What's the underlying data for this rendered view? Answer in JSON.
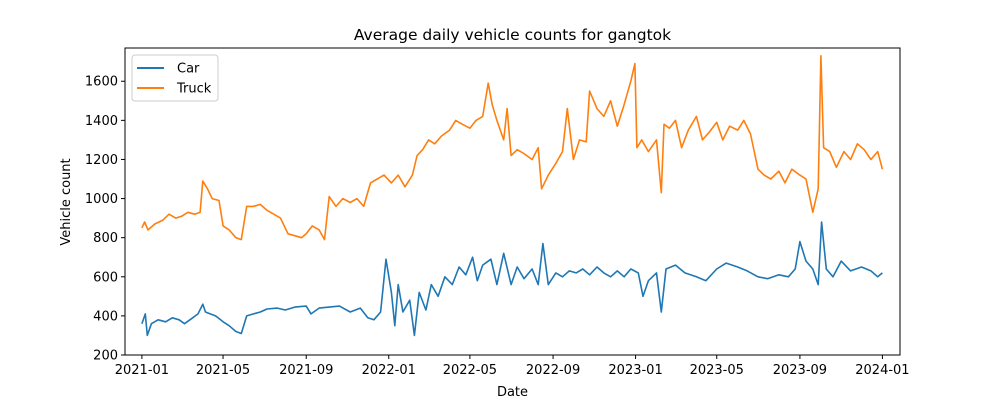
{
  "chart_data": {
    "type": "line",
    "title": "Average daily vehicle counts for gangtok",
    "xlabel": "Date",
    "ylabel": "Vehicle count",
    "xlim": [
      "2020-12-07",
      "2024-01-27"
    ],
    "ylim": [
      200,
      1770
    ],
    "x_ticks": [
      "2021-01-01",
      "2021-05-01",
      "2021-09-01",
      "2022-01-01",
      "2022-05-01",
      "2022-09-01",
      "2023-01-01",
      "2023-05-01",
      "2023-09-01",
      "2024-01-01"
    ],
    "x_tick_labels": [
      "2021-01",
      "2021-05",
      "2021-09",
      "2022-01",
      "2022-05",
      "2022-09",
      "2023-01",
      "2023-05",
      "2023-09",
      "2024-01"
    ],
    "y_ticks": [
      200,
      400,
      600,
      800,
      1000,
      1200,
      1400,
      1600
    ],
    "y_tick_labels": [
      "200",
      "400",
      "600",
      "800",
      "1000",
      "1200",
      "1400",
      "1600"
    ],
    "legend_position": "upper-left",
    "grid": false,
    "series": [
      {
        "name": "Car",
        "color": "#1f77b4",
        "points": [
          [
            "2021-01-01",
            360
          ],
          [
            "2021-01-06",
            410
          ],
          [
            "2021-01-09",
            300
          ],
          [
            "2021-01-15",
            360
          ],
          [
            "2021-01-25",
            380
          ],
          [
            "2021-02-05",
            370
          ],
          [
            "2021-02-15",
            390
          ],
          [
            "2021-02-25",
            380
          ],
          [
            "2021-03-05",
            360
          ],
          [
            "2021-03-15",
            385
          ],
          [
            "2021-03-25",
            410
          ],
          [
            "2021-04-01",
            460
          ],
          [
            "2021-04-05",
            420
          ],
          [
            "2021-04-12",
            410
          ],
          [
            "2021-04-20",
            400
          ],
          [
            "2021-05-01",
            370
          ],
          [
            "2021-05-10",
            350
          ],
          [
            "2021-05-20",
            320
          ],
          [
            "2021-05-28",
            310
          ],
          [
            "2021-06-05",
            400
          ],
          [
            "2021-06-15",
            410
          ],
          [
            "2021-06-25",
            420
          ],
          [
            "2021-07-05",
            435
          ],
          [
            "2021-07-20",
            440
          ],
          [
            "2021-08-01",
            430
          ],
          [
            "2021-08-15",
            445
          ],
          [
            "2021-09-01",
            450
          ],
          [
            "2021-09-08",
            410
          ],
          [
            "2021-09-20",
            440
          ],
          [
            "2021-10-05",
            445
          ],
          [
            "2021-10-20",
            450
          ],
          [
            "2021-11-05",
            420
          ],
          [
            "2021-11-20",
            440
          ],
          [
            "2021-12-01",
            390
          ],
          [
            "2021-12-10",
            380
          ],
          [
            "2021-12-20",
            420
          ],
          [
            "2021-12-28",
            690
          ],
          [
            "2022-01-05",
            520
          ],
          [
            "2022-01-10",
            350
          ],
          [
            "2022-01-15",
            560
          ],
          [
            "2022-01-22",
            420
          ],
          [
            "2022-02-01",
            480
          ],
          [
            "2022-02-08",
            300
          ],
          [
            "2022-02-15",
            520
          ],
          [
            "2022-02-25",
            430
          ],
          [
            "2022-03-05",
            560
          ],
          [
            "2022-03-15",
            500
          ],
          [
            "2022-03-25",
            600
          ],
          [
            "2022-04-05",
            560
          ],
          [
            "2022-04-15",
            650
          ],
          [
            "2022-04-25",
            610
          ],
          [
            "2022-05-05",
            700
          ],
          [
            "2022-05-12",
            580
          ],
          [
            "2022-05-20",
            660
          ],
          [
            "2022-06-01",
            690
          ],
          [
            "2022-06-10",
            560
          ],
          [
            "2022-06-20",
            720
          ],
          [
            "2022-07-01",
            560
          ],
          [
            "2022-07-10",
            650
          ],
          [
            "2022-07-20",
            590
          ],
          [
            "2022-08-01",
            640
          ],
          [
            "2022-08-10",
            560
          ],
          [
            "2022-08-17",
            770
          ],
          [
            "2022-08-25",
            560
          ],
          [
            "2022-09-05",
            620
          ],
          [
            "2022-09-15",
            600
          ],
          [
            "2022-09-25",
            630
          ],
          [
            "2022-10-05",
            620
          ],
          [
            "2022-10-15",
            640
          ],
          [
            "2022-10-25",
            610
          ],
          [
            "2022-11-05",
            650
          ],
          [
            "2022-11-15",
            620
          ],
          [
            "2022-11-25",
            600
          ],
          [
            "2022-12-05",
            630
          ],
          [
            "2022-12-15",
            600
          ],
          [
            "2022-12-25",
            640
          ],
          [
            "2023-01-05",
            620
          ],
          [
            "2023-01-12",
            500
          ],
          [
            "2023-01-20",
            580
          ],
          [
            "2023-02-01",
            620
          ],
          [
            "2023-02-08",
            420
          ],
          [
            "2023-02-15",
            640
          ],
          [
            "2023-03-01",
            660
          ],
          [
            "2023-03-15",
            620
          ],
          [
            "2023-04-01",
            600
          ],
          [
            "2023-04-15",
            580
          ],
          [
            "2023-05-01",
            640
          ],
          [
            "2023-05-15",
            670
          ],
          [
            "2023-06-01",
            650
          ],
          [
            "2023-06-15",
            630
          ],
          [
            "2023-07-01",
            600
          ],
          [
            "2023-07-15",
            590
          ],
          [
            "2023-08-01",
            610
          ],
          [
            "2023-08-15",
            600
          ],
          [
            "2023-08-25",
            640
          ],
          [
            "2023-09-01",
            780
          ],
          [
            "2023-09-10",
            680
          ],
          [
            "2023-09-20",
            640
          ],
          [
            "2023-09-28",
            560
          ],
          [
            "2023-10-03",
            880
          ],
          [
            "2023-10-10",
            640
          ],
          [
            "2023-10-20",
            600
          ],
          [
            "2023-11-01",
            680
          ],
          [
            "2023-11-15",
            630
          ],
          [
            "2023-12-01",
            650
          ],
          [
            "2023-12-15",
            630
          ],
          [
            "2023-12-25",
            600
          ],
          [
            "2024-01-01",
            620
          ]
        ]
      },
      {
        "name": "Truck",
        "color": "#ff7f0e",
        "points": [
          [
            "2021-01-01",
            850
          ],
          [
            "2021-01-05",
            880
          ],
          [
            "2021-01-10",
            840
          ],
          [
            "2021-01-20",
            870
          ],
          [
            "2021-02-01",
            890
          ],
          [
            "2021-02-10",
            920
          ],
          [
            "2021-02-20",
            900
          ],
          [
            "2021-03-01",
            910
          ],
          [
            "2021-03-10",
            930
          ],
          [
            "2021-03-20",
            920
          ],
          [
            "2021-03-28",
            930
          ],
          [
            "2021-04-01",
            1090
          ],
          [
            "2021-04-08",
            1050
          ],
          [
            "2021-04-15",
            1000
          ],
          [
            "2021-04-25",
            990
          ],
          [
            "2021-05-01",
            860
          ],
          [
            "2021-05-10",
            840
          ],
          [
            "2021-05-20",
            800
          ],
          [
            "2021-05-28",
            790
          ],
          [
            "2021-06-05",
            960
          ],
          [
            "2021-06-15",
            960
          ],
          [
            "2021-06-25",
            970
          ],
          [
            "2021-07-05",
            940
          ],
          [
            "2021-07-15",
            920
          ],
          [
            "2021-07-25",
            900
          ],
          [
            "2021-08-05",
            820
          ],
          [
            "2021-08-15",
            810
          ],
          [
            "2021-08-25",
            800
          ],
          [
            "2021-09-01",
            820
          ],
          [
            "2021-09-10",
            860
          ],
          [
            "2021-09-20",
            840
          ],
          [
            "2021-09-28",
            790
          ],
          [
            "2021-10-05",
            1010
          ],
          [
            "2021-10-15",
            960
          ],
          [
            "2021-10-25",
            1000
          ],
          [
            "2021-11-05",
            980
          ],
          [
            "2021-11-15",
            1000
          ],
          [
            "2021-11-25",
            960
          ],
          [
            "2021-12-05",
            1080
          ],
          [
            "2021-12-15",
            1100
          ],
          [
            "2021-12-25",
            1120
          ],
          [
            "2022-01-05",
            1080
          ],
          [
            "2022-01-15",
            1120
          ],
          [
            "2022-01-25",
            1060
          ],
          [
            "2022-02-05",
            1120
          ],
          [
            "2022-02-12",
            1220
          ],
          [
            "2022-02-20",
            1250
          ],
          [
            "2022-03-01",
            1300
          ],
          [
            "2022-03-10",
            1280
          ],
          [
            "2022-03-20",
            1320
          ],
          [
            "2022-04-01",
            1350
          ],
          [
            "2022-04-10",
            1400
          ],
          [
            "2022-04-20",
            1380
          ],
          [
            "2022-05-01",
            1360
          ],
          [
            "2022-05-10",
            1400
          ],
          [
            "2022-05-20",
            1420
          ],
          [
            "2022-05-28",
            1590
          ],
          [
            "2022-06-03",
            1480
          ],
          [
            "2022-06-10",
            1400
          ],
          [
            "2022-06-20",
            1300
          ],
          [
            "2022-06-25",
            1460
          ],
          [
            "2022-07-01",
            1220
          ],
          [
            "2022-07-10",
            1250
          ],
          [
            "2022-07-20",
            1230
          ],
          [
            "2022-08-01",
            1200
          ],
          [
            "2022-08-10",
            1260
          ],
          [
            "2022-08-15",
            1050
          ],
          [
            "2022-08-25",
            1120
          ],
          [
            "2022-09-05",
            1180
          ],
          [
            "2022-09-15",
            1240
          ],
          [
            "2022-09-22",
            1460
          ],
          [
            "2022-10-01",
            1200
          ],
          [
            "2022-10-10",
            1300
          ],
          [
            "2022-10-20",
            1290
          ],
          [
            "2022-10-25",
            1550
          ],
          [
            "2022-11-05",
            1460
          ],
          [
            "2022-11-15",
            1420
          ],
          [
            "2022-11-25",
            1500
          ],
          [
            "2022-12-05",
            1370
          ],
          [
            "2022-12-15",
            1480
          ],
          [
            "2022-12-25",
            1600
          ],
          [
            "2022-12-31",
            1690
          ],
          [
            "2023-01-03",
            1260
          ],
          [
            "2023-01-10",
            1300
          ],
          [
            "2023-01-20",
            1240
          ],
          [
            "2023-02-01",
            1300
          ],
          [
            "2023-02-08",
            1030
          ],
          [
            "2023-02-12",
            1380
          ],
          [
            "2023-02-20",
            1360
          ],
          [
            "2023-03-01",
            1400
          ],
          [
            "2023-03-10",
            1260
          ],
          [
            "2023-03-20",
            1350
          ],
          [
            "2023-04-01",
            1420
          ],
          [
            "2023-04-10",
            1300
          ],
          [
            "2023-04-20",
            1340
          ],
          [
            "2023-05-01",
            1390
          ],
          [
            "2023-05-10",
            1300
          ],
          [
            "2023-05-20",
            1370
          ],
          [
            "2023-06-01",
            1350
          ],
          [
            "2023-06-10",
            1400
          ],
          [
            "2023-06-20",
            1330
          ],
          [
            "2023-07-01",
            1150
          ],
          [
            "2023-07-10",
            1120
          ],
          [
            "2023-07-20",
            1100
          ],
          [
            "2023-08-01",
            1140
          ],
          [
            "2023-08-10",
            1080
          ],
          [
            "2023-08-20",
            1150
          ],
          [
            "2023-09-01",
            1120
          ],
          [
            "2023-09-10",
            1100
          ],
          [
            "2023-09-20",
            930
          ],
          [
            "2023-09-28",
            1050
          ],
          [
            "2023-10-02",
            1730
          ],
          [
            "2023-10-06",
            1260
          ],
          [
            "2023-10-15",
            1240
          ],
          [
            "2023-10-25",
            1160
          ],
          [
            "2023-11-05",
            1240
          ],
          [
            "2023-11-15",
            1200
          ],
          [
            "2023-11-25",
            1280
          ],
          [
            "2023-12-05",
            1250
          ],
          [
            "2023-12-15",
            1200
          ],
          [
            "2023-12-25",
            1240
          ],
          [
            "2024-01-01",
            1150
          ]
        ]
      }
    ]
  }
}
